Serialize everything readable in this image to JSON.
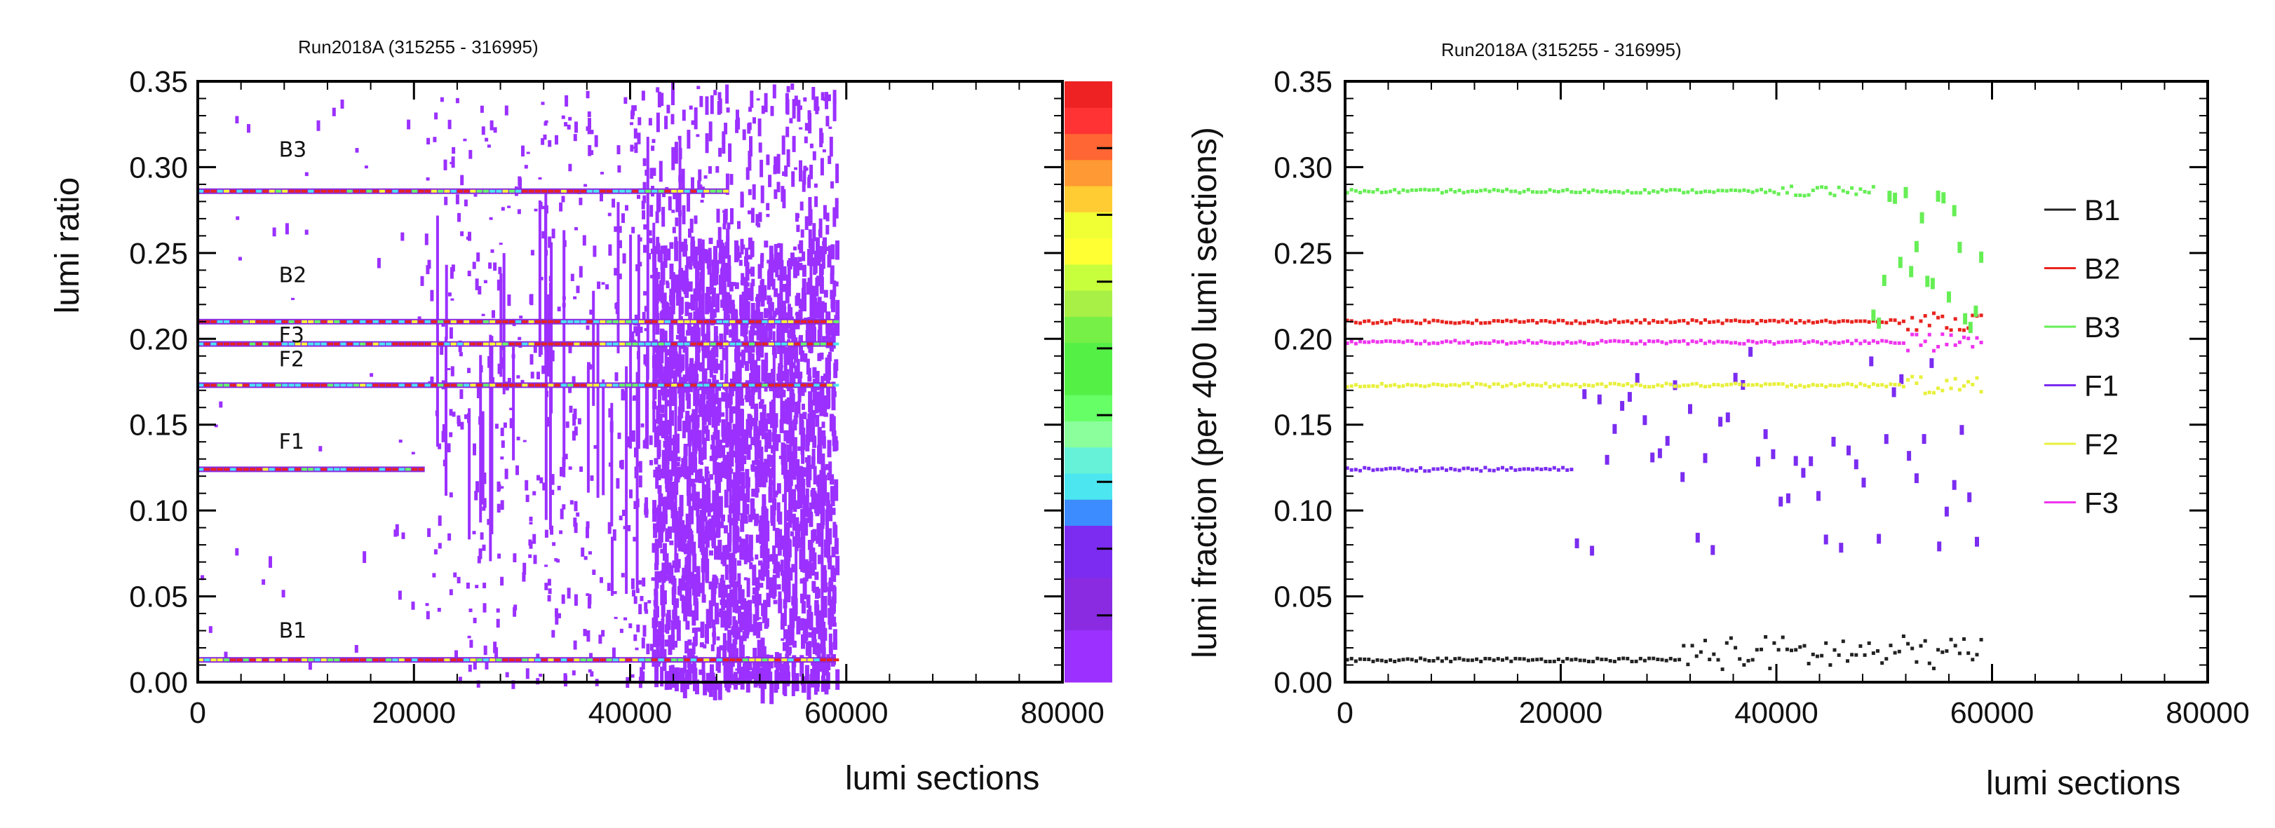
{
  "chart_data": [
    {
      "type": "heatmap",
      "title": "Run2018A (315255 - 316995)",
      "xlabel": "lumi sections",
      "ylabel": "lumi ratio",
      "xlim": [
        0,
        80000
      ],
      "ylim": [
        0,
        0.35
      ],
      "xticks": [
        "0",
        "20000",
        "40000",
        "60000",
        "80000"
      ],
      "yticks": [
        "0.00",
        "0.05",
        "0.10",
        "0.15",
        "0.20",
        "0.25",
        "0.30",
        "0.35"
      ],
      "band_labels": [
        {
          "text": "B3",
          "x": 7500,
          "y": 0.306
        },
        {
          "text": "B2",
          "x": 7500,
          "y": 0.233
        },
        {
          "text": "F3",
          "x": 7500,
          "y": 0.198
        },
        {
          "text": "F2",
          "x": 7500,
          "y": 0.184
        },
        {
          "text": "F1",
          "x": 7500,
          "y": 0.136
        },
        {
          "text": "B1",
          "x": 7500,
          "y": 0.026
        }
      ],
      "bands": [
        {
          "name": "B3",
          "y": 0.286
        },
        {
          "name": "B2",
          "y": 0.21
        },
        {
          "name": "F3",
          "y": 0.197
        },
        {
          "name": "F2",
          "y": 0.173
        },
        {
          "name": "F1",
          "y": 0.124
        },
        {
          "name": "B1",
          "y": 0.013
        }
      ],
      "colorbar": [
        "#9b30ff",
        "#9b30ff",
        "#8a2be2",
        "#8a2be2",
        "#7b2cf0",
        "#7b2cf0",
        "#3d8cff",
        "#4be6f0",
        "#66f2d8",
        "#8aff9b",
        "#66ff66",
        "#55f046",
        "#55f046",
        "#76ef46",
        "#a8f046",
        "#c8ff3c",
        "#ffff33",
        "#f0ff33",
        "#ffcc33",
        "#ff9933",
        "#ff6633",
        "#ff3333",
        "#ee2222"
      ]
    },
    {
      "type": "scatter",
      "title": "Run2018A (315255 - 316995)",
      "xlabel": "lumi sections",
      "ylabel": "lumi fraction (per 400 lumi sections)",
      "xlim": [
        0,
        80000
      ],
      "ylim": [
        0,
        0.35
      ],
      "xticks": [
        "0",
        "20000",
        "40000",
        "60000",
        "80000"
      ],
      "yticks": [
        "0.00",
        "0.05",
        "0.10",
        "0.15",
        "0.20",
        "0.25",
        "0.30",
        "0.35"
      ],
      "legend_position": "right",
      "series": [
        {
          "name": "B1",
          "color": "#222222",
          "y": 0.013,
          "x_end": 59000
        },
        {
          "name": "B2",
          "color": "#e8231e",
          "y": 0.21,
          "x_end": 59000
        },
        {
          "name": "B3",
          "color": "#66ee55",
          "y": 0.286,
          "x_end": 49000
        },
        {
          "name": "F1",
          "color": "#7b2cf0",
          "y": 0.124,
          "x_end": 21000
        },
        {
          "name": "F2",
          "color": "#e8f03c",
          "y": 0.173,
          "x_end": 59000
        },
        {
          "name": "F3",
          "color": "#ee33ee",
          "y": 0.198,
          "x_end": 59000
        }
      ]
    }
  ]
}
